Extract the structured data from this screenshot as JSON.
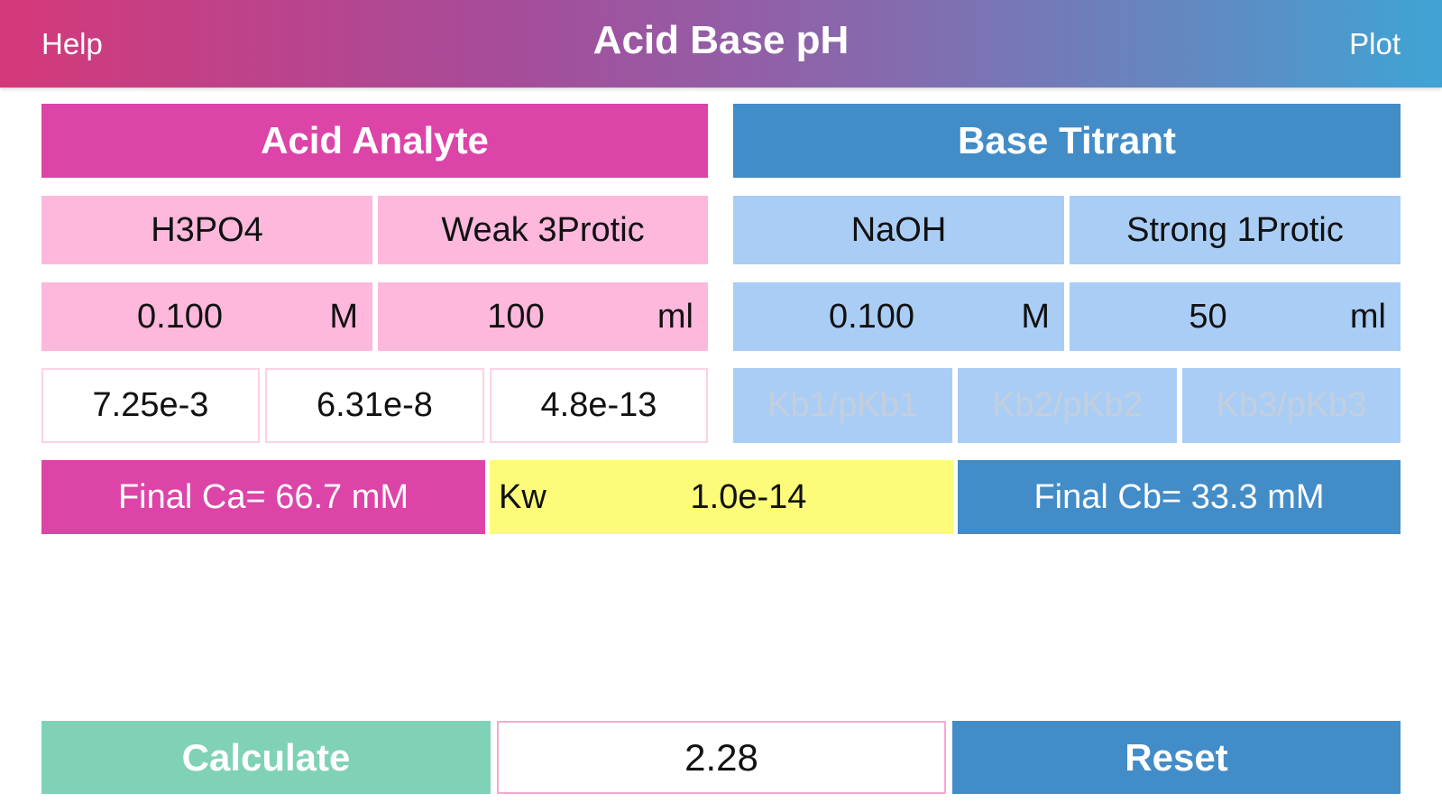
{
  "header": {
    "title": "Acid Base pH",
    "left_button": "Help",
    "right_button": "Plot"
  },
  "acid": {
    "heading": "Acid Analyte",
    "name": "H3PO4",
    "type": "Weak 3Protic",
    "concentration": "0.100",
    "concentration_unit": "M",
    "volume": "100",
    "volume_unit": "ml",
    "ka": [
      "7.25e-3",
      "6.31e-8",
      "4.8e-13"
    ],
    "final": "Final Ca=  66.7 mM"
  },
  "base": {
    "heading": "Base Titrant",
    "name": "NaOH",
    "type": "Strong 1Protic",
    "concentration": "0.100",
    "concentration_unit": "M",
    "volume": "50",
    "volume_unit": "ml",
    "kb_placeholders": [
      "Kb1/pKb1",
      "Kb2/pKb2",
      "Kb3/pKb3"
    ],
    "final": "Final Cb=  33.3 mM"
  },
  "kw": {
    "label": "Kw",
    "value": "1.0e-14"
  },
  "footer": {
    "calculate": "Calculate",
    "result": "2.28",
    "reset": "Reset"
  },
  "colors": {
    "acid": "#dc44a8",
    "base": "#428cc8",
    "acid_light": "#fdb8dc",
    "base_light": "#a9cdf5",
    "kw": "#fcfc7a",
    "calculate": "#80d2b6"
  }
}
